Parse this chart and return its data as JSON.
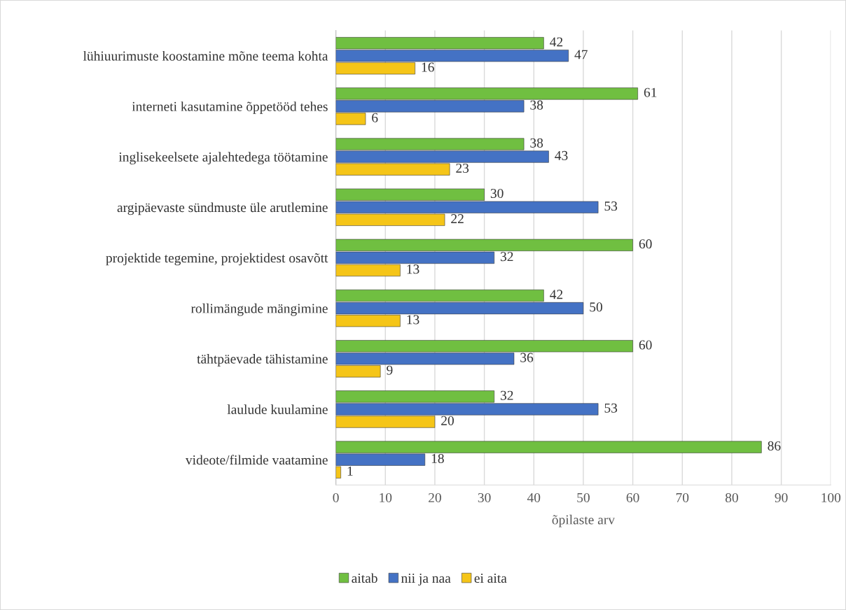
{
  "chart_data": {
    "type": "bar",
    "orientation": "horizontal",
    "xlabel": "õpilaste arv",
    "categories": [
      "lühiuurimuste koostamine mõne teema kohta",
      "interneti kasutamine õppetööd tehes",
      "inglisekeelsete ajalehtedega töötamine",
      "argipäevaste sündmuste üle arutlemine",
      "projektide tegemine, projektidest osavõtt",
      "rollimängude mängimine",
      "tähtpäevade tähistamine",
      "laulude kuulamine",
      "videote/filmide vaatamine"
    ],
    "series": [
      {
        "name": "aitab",
        "color": "#70bf41",
        "values": [
          42,
          61,
          38,
          30,
          60,
          42,
          60,
          32,
          86
        ]
      },
      {
        "name": "nii ja naa",
        "color": "#4472c4",
        "values": [
          47,
          38,
          43,
          53,
          32,
          50,
          36,
          53,
          18
        ]
      },
      {
        "name": "ei aita",
        "color": "#f5c518",
        "values": [
          16,
          6,
          23,
          22,
          13,
          13,
          9,
          20,
          1
        ]
      }
    ],
    "xlim": [
      0,
      100
    ],
    "xticks": [
      0,
      10,
      20,
      30,
      40,
      50,
      60,
      70,
      80,
      90,
      100
    ],
    "grid": "x",
    "legend": "bottom",
    "data_labels": true
  }
}
